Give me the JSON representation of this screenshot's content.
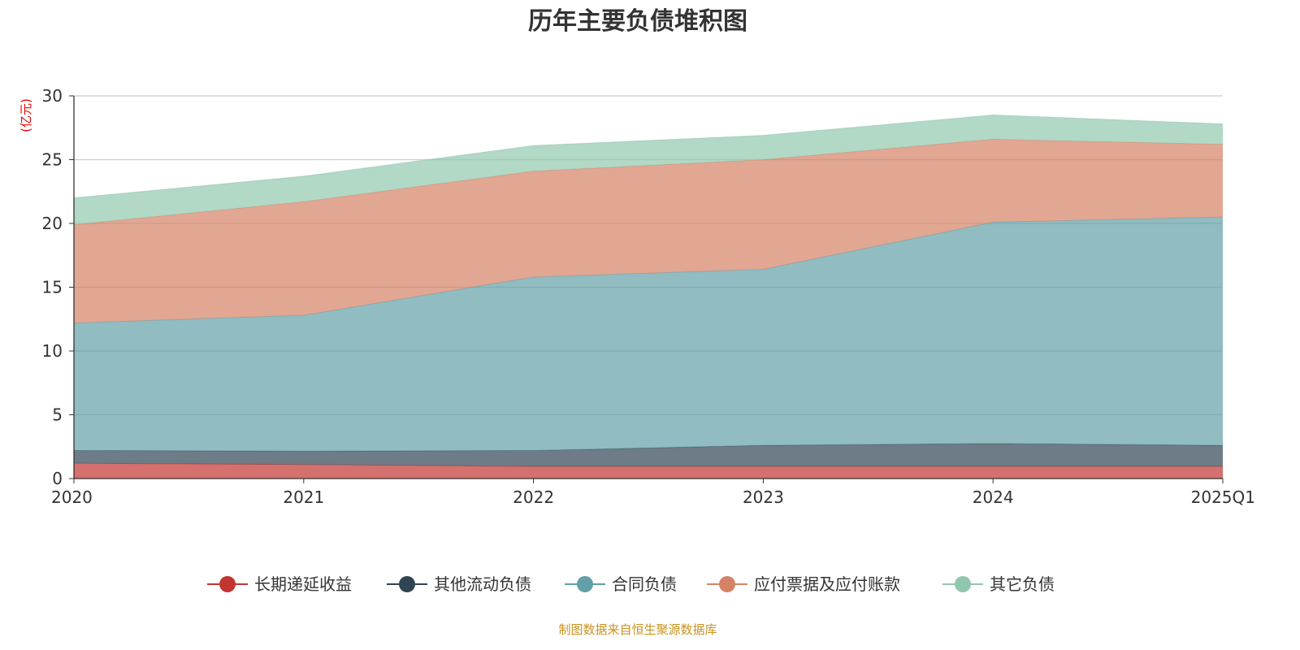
{
  "chart_data": {
    "type": "area",
    "stacked": true,
    "title": "历年主要负债堆积图",
    "ylabel": "(亿元)",
    "xlabel": "",
    "categories": [
      "2020",
      "2021",
      "2022",
      "2023",
      "2024",
      "2025Q1"
    ],
    "ylim": [
      0,
      30
    ],
    "yticks": [
      0,
      5,
      10,
      15,
      20,
      25,
      30
    ],
    "grid": true,
    "legend_position": "bottom",
    "series": [
      {
        "name": "长期递延收益",
        "color": "#c23531",
        "values": [
          1.2,
          1.1,
          0.95,
          0.95,
          0.95,
          0.95
        ]
      },
      {
        "name": "其他流动负债",
        "color": "#2f4554",
        "values": [
          1.0,
          1.05,
          1.25,
          1.65,
          1.8,
          1.65
        ]
      },
      {
        "name": "合同负债",
        "color": "#61a0a8",
        "values": [
          10.0,
          10.65,
          13.6,
          13.8,
          17.35,
          17.9
        ]
      },
      {
        "name": "应付票据及应付账款",
        "color": "#d48265",
        "values": [
          7.7,
          8.9,
          8.3,
          8.6,
          6.5,
          5.7
        ]
      },
      {
        "name": "其它负债",
        "color": "#91c7ae",
        "values": [
          2.1,
          2.0,
          2.0,
          1.9,
          1.9,
          1.6
        ]
      }
    ]
  },
  "footer": {
    "source": "制图数据来自恒生聚源数据库"
  }
}
